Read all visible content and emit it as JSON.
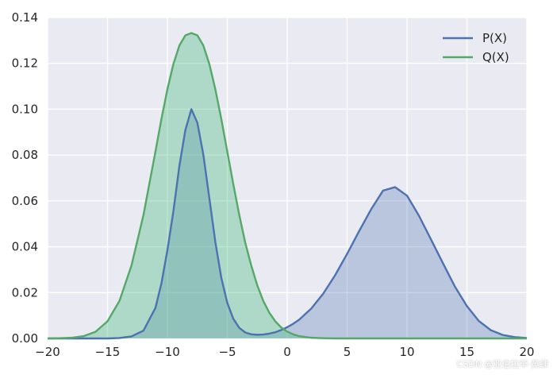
{
  "chart_data": {
    "type": "area",
    "title": "",
    "xlabel": "",
    "ylabel": "",
    "xlim": [
      -20,
      20
    ],
    "ylim": [
      0,
      0.14
    ],
    "x_ticks": [
      -20,
      -15,
      -10,
      -5,
      0,
      5,
      10,
      15,
      20
    ],
    "x_tick_labels": [
      "−20",
      "−15",
      "−10",
      "−5",
      "0",
      "5",
      "10",
      "15",
      "20"
    ],
    "y_ticks": [
      0.0,
      0.02,
      0.04,
      0.06,
      0.08,
      0.1,
      0.12,
      0.14
    ],
    "y_tick_labels": [
      "0.00",
      "0.02",
      "0.04",
      "0.06",
      "0.08",
      "0.10",
      "0.12",
      "0.14"
    ],
    "grid": true,
    "background": "#eaeaf2",
    "legend_position": "top-right",
    "series": [
      {
        "name": "P(X)",
        "color": "#4c72b0",
        "fill": "#4c72b0",
        "fill_opacity": 0.3,
        "x": [
          -20,
          -19,
          -18,
          -17,
          -16,
          -15,
          -14,
          -13,
          -12,
          -11,
          -10.5,
          -10,
          -9.5,
          -9,
          -8.5,
          -8,
          -7.5,
          -7,
          -6.5,
          -6,
          -5.5,
          -5,
          -4.5,
          -4,
          -3.5,
          -3,
          -2.5,
          -2,
          -1.5,
          -1,
          -0.5,
          0,
          0.5,
          1,
          2,
          3,
          4,
          5,
          6,
          7,
          8,
          9,
          10,
          11,
          12,
          13,
          14,
          15,
          16,
          17,
          18,
          19,
          20
        ],
        "y": [
          0.0,
          0.0,
          0.0,
          0.0,
          0.0,
          0.0,
          0.0002,
          0.0009,
          0.0034,
          0.0133,
          0.024,
          0.0385,
          0.0555,
          0.0753,
          0.0909,
          0.1,
          0.0941,
          0.0801,
          0.0612,
          0.0421,
          0.0264,
          0.0155,
          0.0086,
          0.0046,
          0.0026,
          0.0018,
          0.0016,
          0.0017,
          0.0021,
          0.0027,
          0.0037,
          0.0049,
          0.0064,
          0.0082,
          0.013,
          0.0195,
          0.0276,
          0.0369,
          0.0468,
          0.0563,
          0.0645,
          0.066,
          0.0623,
          0.0535,
          0.0432,
          0.0328,
          0.0226,
          0.0141,
          0.0076,
          0.0036,
          0.0015,
          0.0006,
          0.0002
        ]
      },
      {
        "name": "Q(X)",
        "color": "#55a868",
        "fill": "#55c08a",
        "fill_opacity": 0.4,
        "x": [
          -20,
          -19,
          -18,
          -17,
          -16,
          -15,
          -14,
          -13,
          -12,
          -11,
          -10.5,
          -10,
          -9.5,
          -9,
          -8.5,
          -8,
          -7.5,
          -7,
          -6.5,
          -6,
          -5.5,
          -5,
          -4.5,
          -4,
          -3.5,
          -3,
          -2.5,
          -2,
          -1.5,
          -1,
          -0.5,
          0,
          0.5,
          1,
          2,
          3,
          4,
          5,
          6,
          7,
          8,
          9,
          10,
          11,
          12,
          13,
          14,
          15,
          16,
          17,
          18,
          19,
          20
        ],
        "y": [
          0.0,
          0.0001,
          0.0003,
          0.001,
          0.0029,
          0.0075,
          0.0164,
          0.0318,
          0.0538,
          0.0815,
          0.0957,
          0.1087,
          0.1197,
          0.1278,
          0.1322,
          0.1332,
          0.1322,
          0.1278,
          0.1197,
          0.1087,
          0.0957,
          0.0815,
          0.0673,
          0.0538,
          0.0417,
          0.0318,
          0.0232,
          0.0164,
          0.0113,
          0.0075,
          0.0048,
          0.003,
          0.0018,
          0.001,
          0.0003,
          0.0001,
          0.0,
          0.0,
          0.0,
          0.0,
          0.0,
          0.0,
          0.0,
          0.0,
          0.0,
          0.0,
          0.0,
          0.0,
          0.0,
          0.0,
          0.0,
          0.0,
          0.0
        ]
      }
    ]
  },
  "watermark": "CSDN @亚伯拉罕·黄肆"
}
